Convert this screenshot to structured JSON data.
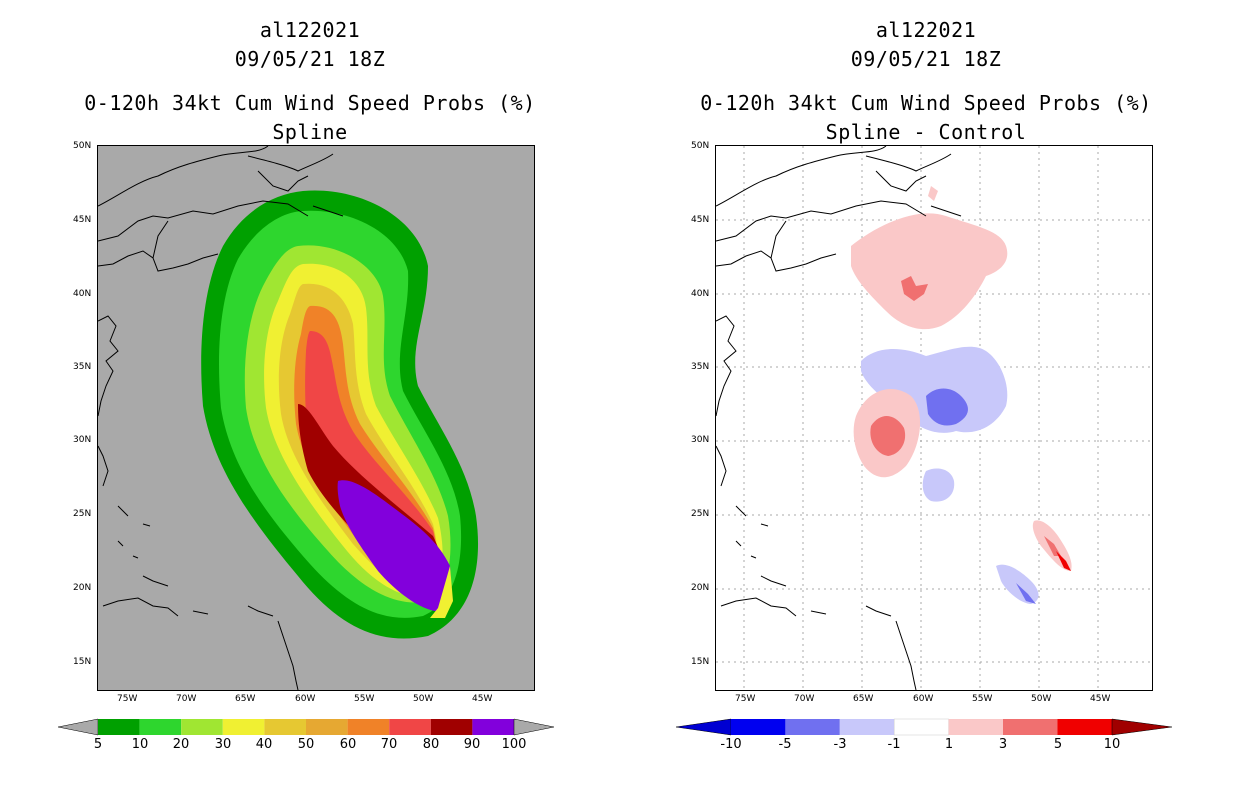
{
  "left_panel": {
    "storm_id": "al122021",
    "datetime": "09/05/21 18Z",
    "product": "0-120h 34kt Cum Wind Speed Probs (%)",
    "subtitle": "Spline",
    "lat_ticks": [
      "50N",
      "45N",
      "40N",
      "35N",
      "30N",
      "25N",
      "20N",
      "15N"
    ],
    "lon_ticks": [
      "75W",
      "70W",
      "65W",
      "60W",
      "55W",
      "50W",
      "45W"
    ],
    "colorbar": {
      "labels": [
        "5",
        "10",
        "20",
        "30",
        "40",
        "50",
        "60",
        "70",
        "80",
        "90",
        "100"
      ],
      "colors": [
        "#00a000",
        "#2ed62e",
        "#a0e632",
        "#f0f032",
        "#e6c832",
        "#e6a832",
        "#f08228",
        "#f04646",
        "#a00000",
        "#8200dc"
      ],
      "background": "#a9a9a9"
    }
  },
  "right_panel": {
    "storm_id": "al122021",
    "datetime": "09/05/21 18Z",
    "product": "0-120h 34kt Cum Wind Speed Probs (%)",
    "subtitle": "Spline - Control",
    "lat_ticks": [
      "50N",
      "45N",
      "40N",
      "35N",
      "30N",
      "25N",
      "20N",
      "15N"
    ],
    "lon_ticks": [
      "75W",
      "70W",
      "65W",
      "60W",
      "55W",
      "50W",
      "45W"
    ],
    "colorbar": {
      "labels": [
        "-10",
        "-5",
        "-3",
        "-1",
        "1",
        "3",
        "5",
        "10"
      ],
      "colors": [
        "#0000d2",
        "#0000f0",
        "#7070f0",
        "#c8c8fa",
        "#ffffff",
        "#fac8c8",
        "#f07070",
        "#f00000",
        "#d20000"
      ]
    }
  }
}
